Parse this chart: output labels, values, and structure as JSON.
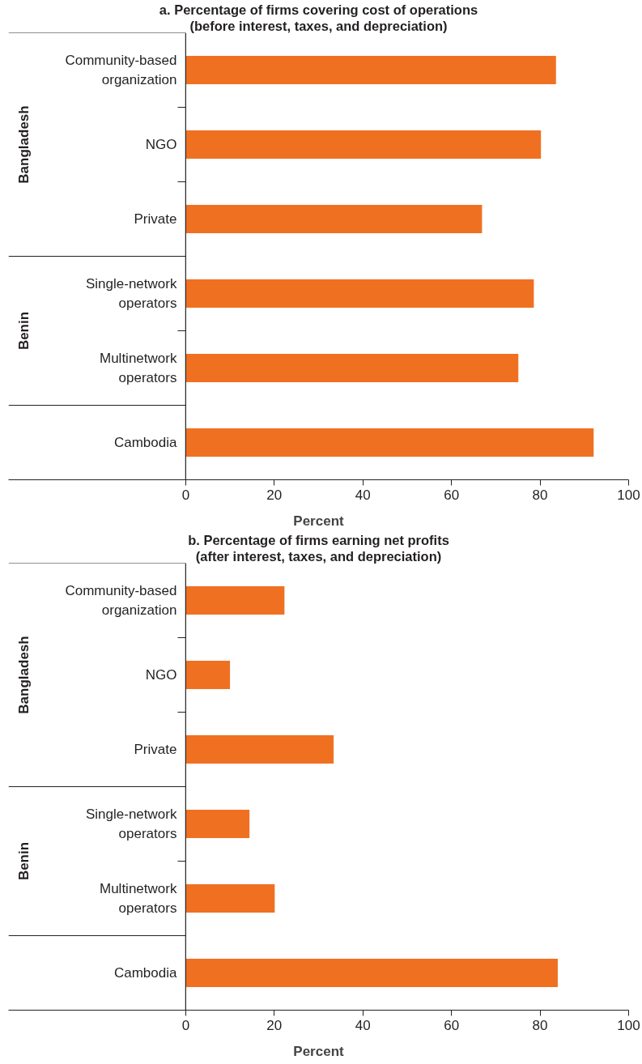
{
  "chart_data": [
    {
      "type": "bar",
      "orientation": "horizontal",
      "title": "a. Percentage of firms covering cost of operations",
      "subtitle": "(before interest, taxes, and depreciation)",
      "xlabel": "Percent",
      "categories": [
        "Community-based organization",
        "NGO",
        "Private",
        "Single-network operators",
        "Multinetwork operators",
        "Cambodia"
      ],
      "values": [
        83.6,
        80.2,
        66.9,
        78.6,
        75.1,
        92.1
      ],
      "color": "#f07022",
      "xlim": [
        0,
        100
      ],
      "xticks": [
        0,
        20,
        40,
        60,
        80,
        100
      ],
      "grid": false,
      "annotations": [
        "Bangladesh",
        "Benin"
      ]
    },
    {
      "type": "bar",
      "orientation": "horizontal",
      "title": "b. Percentage of firms earning net profits",
      "subtitle": "(after interest, taxes, and depreciation)",
      "xlabel": "Percent",
      "categories": [
        "Community-based organization",
        "NGO",
        "Private",
        "Single-network operators",
        "Multinetwork operators",
        "Cambodia"
      ],
      "values": [
        22.3,
        10.0,
        33.4,
        14.4,
        20.1,
        84.0
      ],
      "color": "#f07022",
      "xlim": [
        0,
        100
      ],
      "xticks": [
        0,
        20,
        40,
        60,
        80,
        100
      ],
      "grid": false,
      "annotations": [
        "Bangladesh",
        "Benin"
      ]
    }
  ]
}
